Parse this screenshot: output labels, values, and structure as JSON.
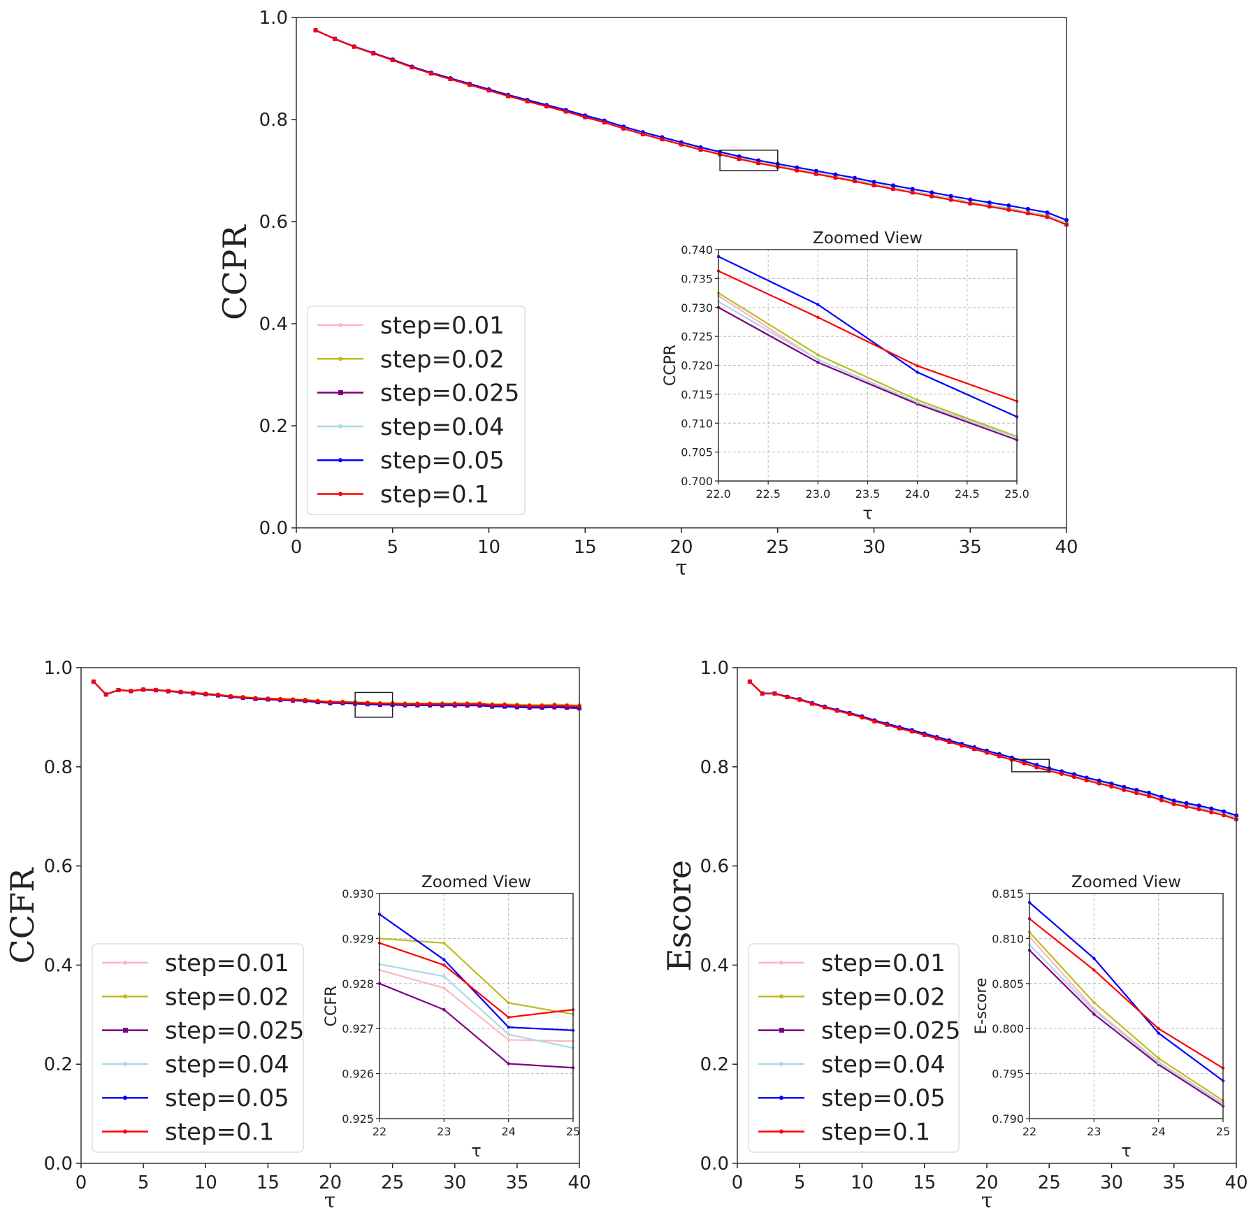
{
  "colors": {
    "step=0.01": "#ffb6c1",
    "step=0.02": "#bcbd22",
    "step=0.025": "#800080",
    "step=0.04": "#add8e6",
    "step=0.05": "#0000ff",
    "step=0.1": "#ff0000"
  },
  "chart_data": [
    {
      "type": "line",
      "ylabel": "CCPR",
      "xlabel": "τ",
      "xlim": [
        0,
        40
      ],
      "ylim": [
        0,
        1
      ],
      "xticks": [
        0,
        5,
        10,
        15,
        20,
        25,
        30,
        35,
        40
      ],
      "yticks": [
        0.0,
        0.2,
        0.4,
        0.6,
        0.8,
        1.0
      ],
      "legend": "center-left",
      "tau": [
        1,
        2,
        3,
        4,
        5,
        6,
        7,
        8,
        9,
        10,
        11,
        12,
        13,
        14,
        15,
        16,
        17,
        18,
        19,
        20,
        21,
        22,
        23,
        24,
        25,
        26,
        27,
        28,
        29,
        30,
        31,
        32,
        33,
        34,
        35,
        36,
        37,
        38,
        39,
        40
      ],
      "base_values": [
        0.975,
        0.958,
        0.943,
        0.93,
        0.917,
        0.903,
        0.891,
        0.88,
        0.869,
        0.858,
        0.847,
        0.837,
        0.827,
        0.817,
        0.806,
        0.796,
        0.784,
        0.773,
        0.763,
        0.753,
        0.743,
        0.734,
        0.725,
        0.717,
        0.71,
        0.703,
        0.696,
        0.689,
        0.682,
        0.674,
        0.667,
        0.66,
        0.653,
        0.646,
        0.639,
        0.633,
        0.627,
        0.62,
        0.613,
        0.598
      ],
      "series": [
        {
          "name": "step=0.01",
          "offset_at_end": -0.002
        },
        {
          "name": "step=0.02",
          "offset_at_end": -0.001
        },
        {
          "name": "step=0.025",
          "offset_at_end": -0.003
        },
        {
          "name": "step=0.04",
          "offset_at_end": -0.002
        },
        {
          "name": "step=0.05",
          "offset_at_end": 0.005
        },
        {
          "name": "step=0.1",
          "offset_at_end": -0.004
        }
      ],
      "zoom_box": {
        "x": [
          22,
          25
        ],
        "y": [
          0.7,
          0.74
        ]
      },
      "inset": {
        "title": "Zoomed View",
        "ylabel": "CCPR",
        "xlabel": "τ",
        "xlim": [
          22,
          25
        ],
        "ylim": [
          0.7,
          0.74
        ],
        "xticks": [
          22.0,
          22.5,
          23.0,
          23.5,
          24.0,
          24.5,
          25.0
        ],
        "xdec": 1,
        "yticks": [
          0.7,
          0.705,
          0.71,
          0.715,
          0.72,
          0.725,
          0.73,
          0.735,
          0.74
        ],
        "ydec": 3,
        "x": [
          22,
          23,
          24,
          25
        ],
        "series": [
          {
            "name": "step=0.01",
            "values": [
              0.732,
              0.721,
              0.7135,
              0.7075
            ]
          },
          {
            "name": "step=0.02",
            "values": [
              0.7325,
              0.7218,
              0.714,
              0.7077
            ]
          },
          {
            "name": "step=0.025",
            "values": [
              0.73,
              0.7205,
              0.7133,
              0.7071
            ]
          },
          {
            "name": "step=0.04",
            "values": [
              0.731,
              0.721,
              0.7136,
              0.7075
            ]
          },
          {
            "name": "step=0.05",
            "values": [
              0.7388,
              0.7305,
              0.7188,
              0.7111
            ]
          },
          {
            "name": "step=0.1",
            "values": [
              0.7363,
              0.7283,
              0.7199,
              0.7138
            ]
          }
        ]
      }
    },
    {
      "type": "line",
      "ylabel": "CCFR",
      "xlabel": "τ",
      "xlim": [
        0,
        40
      ],
      "ylim": [
        0,
        1
      ],
      "xticks": [
        0,
        5,
        10,
        15,
        20,
        25,
        30,
        35,
        40
      ],
      "yticks": [
        0.0,
        0.2,
        0.4,
        0.6,
        0.8,
        1.0
      ],
      "legend": "lower-left",
      "tau": [
        1,
        2,
        3,
        4,
        5,
        6,
        7,
        8,
        9,
        10,
        11,
        12,
        13,
        14,
        15,
        16,
        17,
        18,
        19,
        20,
        21,
        22,
        23,
        24,
        25,
        26,
        27,
        28,
        29,
        30,
        31,
        32,
        33,
        34,
        35,
        36,
        37,
        38,
        39,
        40
      ],
      "base_values": [
        0.972,
        0.946,
        0.955,
        0.953,
        0.956,
        0.955,
        0.953,
        0.951,
        0.949,
        0.947,
        0.945,
        0.942,
        0.94,
        0.938,
        0.937,
        0.936,
        0.935,
        0.934,
        0.932,
        0.93,
        0.93,
        0.929,
        0.928,
        0.927,
        0.927,
        0.926,
        0.926,
        0.926,
        0.926,
        0.926,
        0.926,
        0.926,
        0.924,
        0.924,
        0.923,
        0.922,
        0.922,
        0.923,
        0.922,
        0.921
      ],
      "series": [
        {
          "name": "step=0.01",
          "offset_at_end": -0.001
        },
        {
          "name": "step=0.02",
          "offset_at_end": 0.003
        },
        {
          "name": "step=0.025",
          "offset_at_end": -0.003
        },
        {
          "name": "step=0.04",
          "offset_at_end": -0.001
        },
        {
          "name": "step=0.05",
          "offset_at_end": -0.002
        },
        {
          "name": "step=0.1",
          "offset_at_end": 0.001
        }
      ],
      "zoom_box": {
        "x": [
          22,
          25
        ],
        "y": [
          0.9,
          0.95
        ]
      },
      "inset": {
        "title": "Zoomed View",
        "ylabel": "CCFR",
        "xlabel": "τ",
        "xlim": [
          22,
          25
        ],
        "ylim": [
          0.925,
          0.93
        ],
        "xticks": [
          22,
          23,
          24,
          25
        ],
        "xdec": 0,
        "yticks": [
          0.925,
          0.926,
          0.927,
          0.928,
          0.929,
          0.93
        ],
        "ydec": 3,
        "x": [
          22,
          23,
          24,
          25
        ],
        "series": [
          {
            "name": "step=0.01",
            "values": [
              0.9283,
              0.9279,
              0.92675,
              0.92672
            ]
          },
          {
            "name": "step=0.02",
            "values": [
              0.929,
              0.9289,
              0.92757,
              0.92732
            ]
          },
          {
            "name": "step=0.025",
            "values": [
              0.928,
              0.92742,
              0.92622,
              0.92613
            ]
          },
          {
            "name": "step=0.04",
            "values": [
              0.92843,
              0.92816,
              0.92687,
              0.92657
            ]
          },
          {
            "name": "step=0.05",
            "values": [
              0.92954,
              0.92853,
              0.92703,
              0.92696
            ]
          },
          {
            "name": "step=0.1",
            "values": [
              0.9289,
              0.92841,
              0.92725,
              0.92742
            ]
          }
        ]
      }
    },
    {
      "type": "line",
      "ylabel": "Escore",
      "xlabel": "τ",
      "xlim": [
        0,
        40
      ],
      "ylim": [
        0,
        1
      ],
      "xticks": [
        0,
        5,
        10,
        15,
        20,
        25,
        30,
        35,
        40
      ],
      "yticks": [
        0.0,
        0.2,
        0.4,
        0.6,
        0.8,
        1.0
      ],
      "legend": "lower-left",
      "tau": [
        1,
        2,
        3,
        4,
        5,
        6,
        7,
        8,
        9,
        10,
        11,
        12,
        13,
        14,
        15,
        16,
        17,
        18,
        19,
        20,
        21,
        22,
        23,
        24,
        25,
        26,
        27,
        28,
        29,
        30,
        31,
        32,
        33,
        34,
        35,
        36,
        37,
        38,
        39,
        40
      ],
      "base_values": [
        0.972,
        0.948,
        0.948,
        0.941,
        0.936,
        0.928,
        0.921,
        0.914,
        0.908,
        0.901,
        0.893,
        0.886,
        0.879,
        0.873,
        0.866,
        0.859,
        0.852,
        0.845,
        0.838,
        0.831,
        0.824,
        0.817,
        0.81,
        0.802,
        0.795,
        0.789,
        0.783,
        0.776,
        0.77,
        0.764,
        0.757,
        0.751,
        0.745,
        0.737,
        0.729,
        0.724,
        0.719,
        0.713,
        0.707,
        0.699
      ],
      "series": [
        {
          "name": "step=0.01",
          "offset_at_end": -0.002
        },
        {
          "name": "step=0.02",
          "offset_at_end": -0.001
        },
        {
          "name": "step=0.025",
          "offset_at_end": -0.003
        },
        {
          "name": "step=0.04",
          "offset_at_end": -0.002
        },
        {
          "name": "step=0.05",
          "offset_at_end": 0.003
        },
        {
          "name": "step=0.1",
          "offset_at_end": -0.005
        }
      ],
      "zoom_box": {
        "x": [
          22,
          25
        ],
        "y": [
          0.79,
          0.815
        ]
      },
      "inset": {
        "title": "Zoomed View",
        "ylabel": "E-score",
        "xlabel": "τ",
        "xlim": [
          22,
          25
        ],
        "ylim": [
          0.79,
          0.815
        ],
        "xticks": [
          22,
          23,
          24,
          25
        ],
        "xdec": 0,
        "yticks": [
          0.79,
          0.795,
          0.8,
          0.805,
          0.81,
          0.815
        ],
        "ydec": 3,
        "x": [
          22,
          23,
          24,
          25
        ],
        "series": [
          {
            "name": "step=0.01",
            "values": [
              0.8102,
              0.8022,
              0.7963,
              0.7917
            ]
          },
          {
            "name": "step=0.02",
            "values": [
              0.8107,
              0.8029,
              0.7967,
              0.792
            ]
          },
          {
            "name": "step=0.025",
            "values": [
              0.8087,
              0.8016,
              0.796,
              0.7914
            ]
          },
          {
            "name": "step=0.04",
            "values": [
              0.8093,
              0.802,
              0.7962,
              0.7916
            ]
          },
          {
            "name": "step=0.05",
            "values": [
              0.814,
              0.8078,
              0.7995,
              0.7942
            ]
          },
          {
            "name": "step=0.1",
            "values": [
              0.8122,
              0.8065,
              0.8,
              0.7956
            ]
          }
        ]
      }
    }
  ]
}
